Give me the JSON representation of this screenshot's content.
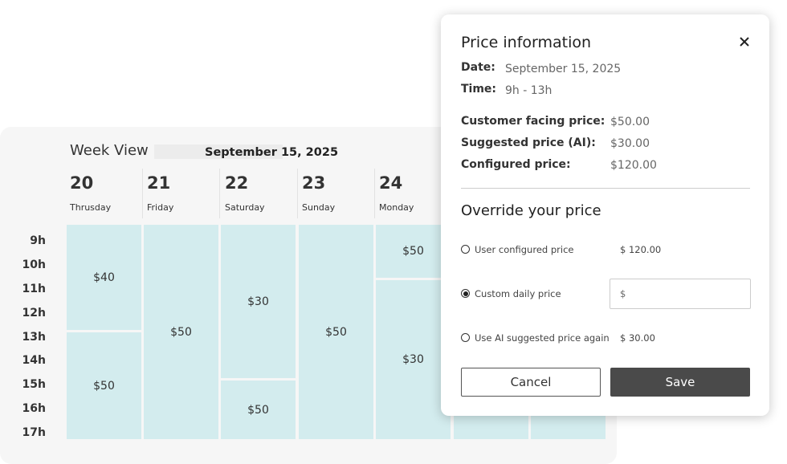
{
  "calendar": {
    "title": "Week View",
    "date": "September 15, 2025",
    "days": [
      {
        "number": "20",
        "name": "Thrusday"
      },
      {
        "number": "21",
        "name": "Friday"
      },
      {
        "number": "22",
        "name": "Saturday"
      },
      {
        "number": "23",
        "name": "Sunday"
      },
      {
        "number": "24",
        "name": "Monday"
      }
    ],
    "hours": [
      "9h",
      "10h",
      "11h",
      "12h",
      "13h",
      "14h",
      "15h",
      "16h",
      "17h"
    ],
    "blocks": [
      [
        "$40",
        "$50"
      ],
      [
        "$50"
      ],
      [
        "$30",
        "$50"
      ],
      [
        "$50"
      ],
      [
        "$50",
        "$30"
      ]
    ]
  },
  "price_info": {
    "title": "Price information",
    "fields": [
      {
        "label": "Date:",
        "value": "September 15, 2025"
      },
      {
        "label": "Time:",
        "value": "9h - 13h"
      }
    ],
    "prices": [
      {
        "label": "Customer facing price:",
        "value": "$50.00"
      },
      {
        "label": "Suggested price (AI):",
        "value": "$30.00"
      },
      {
        "label": "Configured price:",
        "value": "$120.00"
      }
    ],
    "override": {
      "title": "Override your price",
      "options": [
        {
          "label": "User configured price",
          "value": "$ 120.00"
        },
        {
          "label": "Custom daily price",
          "placeholder": "$"
        },
        {
          "label": "Use AI suggested price again",
          "value": "$ 30.00"
        }
      ]
    },
    "buttons": {
      "cancel": "Cancel",
      "save": "Save"
    }
  }
}
